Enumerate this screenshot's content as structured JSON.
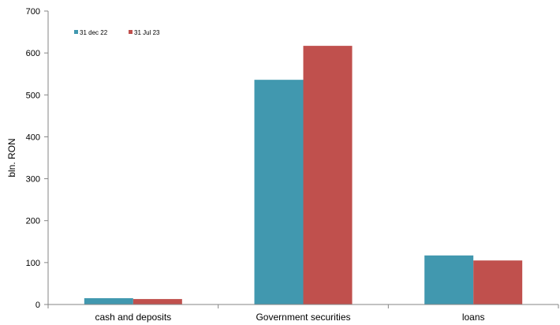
{
  "chart_data": {
    "type": "bar",
    "title": "",
    "xlabel": "",
    "ylabel": "bln. RON",
    "categories": [
      "cash and deposits",
      "Government securities",
      "loans"
    ],
    "series": [
      {
        "name": "31 dec 22",
        "values": [
          15,
          536,
          117
        ],
        "color": "#4198AF"
      },
      {
        "name": "31 Jul 23",
        "values": [
          13,
          617,
          105
        ],
        "color": "#C0504D"
      }
    ],
    "ylim": [
      0,
      700
    ],
    "yticks": [
      0,
      100,
      200,
      300,
      400,
      500,
      600,
      700
    ],
    "ytick_labels": [
      "0",
      "100",
      "200",
      "300",
      "400",
      "500",
      "600",
      "700"
    ],
    "grid": false,
    "legend": "top-left"
  }
}
